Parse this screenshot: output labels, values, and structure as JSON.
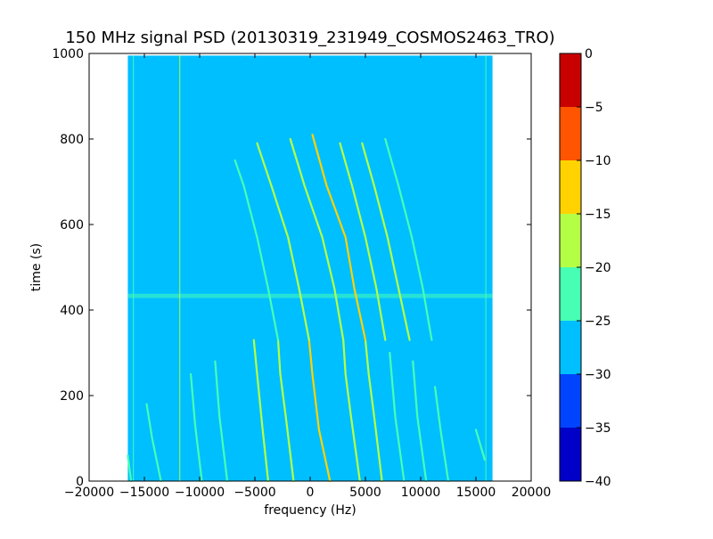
{
  "chart_data": {
    "type": "heatmap",
    "title": "150 MHz signal PSD (20130319_231949_COSMOS2463_TRO)",
    "xlabel": "frequency (Hz)",
    "ylabel": "time (s)",
    "xlim": [
      -20000,
      20000
    ],
    "ylim": [
      0,
      1000
    ],
    "xticks": [
      -20000,
      -15000,
      -10000,
      -5000,
      0,
      5000,
      10000,
      15000,
      20000
    ],
    "xtick_labels": [
      "−20000",
      "−15000",
      "−10000",
      "−5000",
      "0",
      "5000",
      "10000",
      "15000",
      "20000"
    ],
    "yticks": [
      0,
      200,
      400,
      600,
      800,
      1000
    ],
    "ytick_labels": [
      "0",
      "200",
      "400",
      "600",
      "800",
      "1000"
    ],
    "data_extent": {
      "x": [
        -16500,
        16500
      ],
      "y": [
        0,
        995
      ]
    },
    "background_level": -27.5,
    "traces": [
      {
        "level": -15,
        "points": [
          [
            1800,
            0
          ],
          [
            800,
            120
          ],
          [
            200,
            250
          ],
          [
            -100,
            330
          ]
        ]
      },
      {
        "level": -20,
        "points": [
          [
            4500,
            0
          ],
          [
            3700,
            150
          ],
          [
            3200,
            250
          ],
          [
            3000,
            330
          ]
        ]
      },
      {
        "level": -20,
        "points": [
          [
            -1500,
            0
          ],
          [
            -2200,
            150
          ],
          [
            -2700,
            250
          ],
          [
            -2900,
            330
          ]
        ]
      },
      {
        "level": -20,
        "points": [
          [
            -3800,
            0
          ],
          [
            -4300,
            120
          ],
          [
            -4800,
            250
          ],
          [
            -5100,
            330
          ]
        ]
      },
      {
        "level": -20,
        "points": [
          [
            6500,
            0
          ],
          [
            5800,
            150
          ],
          [
            5300,
            250
          ],
          [
            5000,
            330
          ]
        ]
      },
      {
        "level": -22,
        "points": [
          [
            8500,
            0
          ],
          [
            7700,
            150
          ],
          [
            7200,
            300
          ]
        ]
      },
      {
        "level": -22,
        "points": [
          [
            10500,
            0
          ],
          [
            9700,
            150
          ],
          [
            9300,
            280
          ]
        ]
      },
      {
        "level": -22,
        "points": [
          [
            -7500,
            0
          ],
          [
            -8200,
            150
          ],
          [
            -8600,
            280
          ]
        ]
      },
      {
        "level": -22,
        "points": [
          [
            -9800,
            0
          ],
          [
            -10400,
            130
          ],
          [
            -10800,
            250
          ]
        ]
      },
      {
        "level": -22,
        "points": [
          [
            -13500,
            0
          ],
          [
            -14300,
            100
          ],
          [
            -14800,
            180
          ]
        ]
      },
      {
        "level": -22,
        "points": [
          [
            -16200,
            0
          ],
          [
            -16500,
            60
          ]
        ]
      },
      {
        "level": -22,
        "points": [
          [
            15800,
            50
          ],
          [
            15000,
            120
          ]
        ]
      },
      {
        "level": -22,
        "points": [
          [
            12500,
            0
          ],
          [
            11800,
            120
          ],
          [
            11300,
            220
          ]
        ]
      },
      {
        "level": -15,
        "points": [
          [
            5000,
            330
          ],
          [
            4000,
            450
          ],
          [
            3200,
            570
          ],
          [
            1500,
            690
          ],
          [
            200,
            810
          ]
        ]
      },
      {
        "level": -20,
        "points": [
          [
            3000,
            330
          ],
          [
            2200,
            450
          ],
          [
            1100,
            570
          ],
          [
            -500,
            690
          ],
          [
            -1800,
            800
          ]
        ]
      },
      {
        "level": -20,
        "points": [
          [
            -100,
            330
          ],
          [
            -1000,
            450
          ],
          [
            -2000,
            570
          ],
          [
            -3500,
            690
          ],
          [
            -4800,
            790
          ]
        ]
      },
      {
        "level": -20,
        "points": [
          [
            6800,
            330
          ],
          [
            6000,
            450
          ],
          [
            5000,
            570
          ],
          [
            3800,
            690
          ],
          [
            2700,
            790
          ]
        ]
      },
      {
        "level": -20,
        "points": [
          [
            9000,
            330
          ],
          [
            8000,
            450
          ],
          [
            7000,
            570
          ],
          [
            5800,
            690
          ],
          [
            4700,
            790
          ]
        ]
      },
      {
        "level": -22,
        "points": [
          [
            -2900,
            330
          ],
          [
            -3800,
            450
          ],
          [
            -4800,
            570
          ],
          [
            -6000,
            690
          ],
          [
            -6800,
            750
          ]
        ]
      },
      {
        "level": -22,
        "points": [
          [
            11000,
            330
          ],
          [
            10200,
            450
          ],
          [
            9200,
            570
          ],
          [
            8000,
            690
          ],
          [
            6800,
            800
          ]
        ]
      }
    ],
    "vertical_lines": [
      {
        "x": -11800,
        "y": [
          0,
          995
        ],
        "level": -20
      },
      {
        "x": -16000,
        "y": [
          0,
          995
        ],
        "level": -22
      },
      {
        "x": 15900,
        "y": [
          0,
          995
        ],
        "level": -22
      }
    ],
    "horizontal_band": {
      "y": [
        428,
        438
      ],
      "x": [
        -16500,
        16500
      ],
      "level": -22
    },
    "colorbar": {
      "levels": [
        -40,
        -35,
        -30,
        -25,
        -20,
        -15,
        -10,
        -5,
        0
      ],
      "tick_labels": [
        "−40",
        "−35",
        "−30",
        "−25",
        "−20",
        "−15",
        "−10",
        "−5",
        "0"
      ],
      "colors": [
        "#0000c8",
        "#0044ff",
        "#00bfff",
        "#46ffb4",
        "#b4ff46",
        "#ffd200",
        "#ff5500",
        "#c80000"
      ]
    }
  }
}
